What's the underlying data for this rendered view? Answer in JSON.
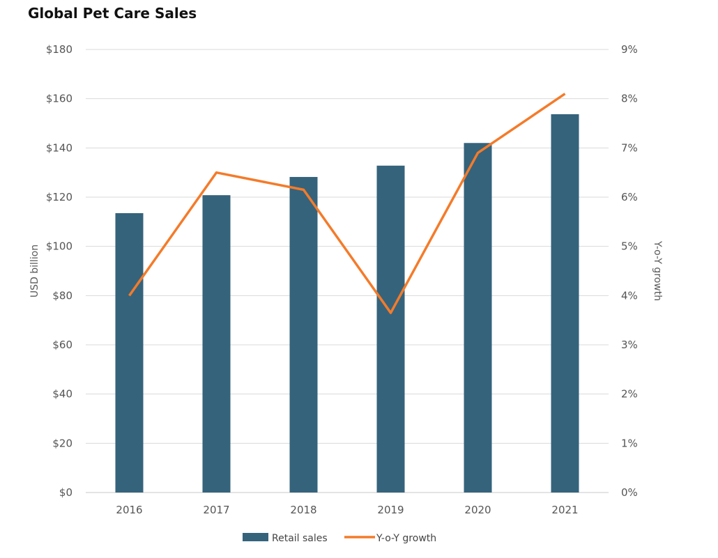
{
  "chart_data": {
    "type": "bar",
    "title": "Global Pet Care Sales",
    "categories": [
      "2016",
      "2017",
      "2018",
      "2019",
      "2020",
      "2021"
    ],
    "series": [
      {
        "name": "Retail sales",
        "type": "bar",
        "axis": "left",
        "color": "#35637C",
        "values": [
          113.5,
          120.8,
          128.2,
          132.8,
          142.0,
          153.7
        ]
      },
      {
        "name": "Y-o-Y growth",
        "type": "line",
        "axis": "right",
        "color": "#F47B2A",
        "values": [
          4.0,
          6.5,
          6.15,
          3.65,
          6.9,
          8.1
        ]
      }
    ],
    "ylabel": "USD billion",
    "y2label": "Y-o-Y growth",
    "ylim": [
      0,
      180
    ],
    "y2lim": [
      0,
      9
    ],
    "yticks": [
      "$0",
      "$20",
      "$40",
      "$60",
      "$80",
      "$100",
      "$120",
      "$140",
      "$160",
      "$180"
    ],
    "y2ticks": [
      "0%",
      "1%",
      "2%",
      "3%",
      "4%",
      "5%",
      "6%",
      "7%",
      "8%",
      "9%"
    ],
    "grid": true,
    "legend_position": "bottom"
  }
}
